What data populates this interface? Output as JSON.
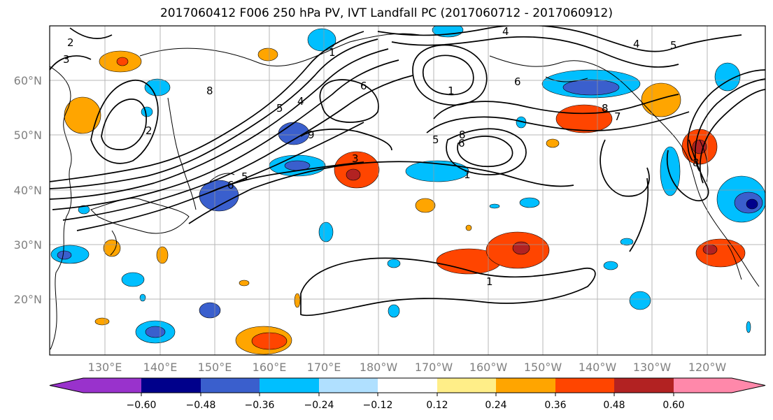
{
  "title": "2017060412 F006 250 hPa PV, IVT Landfall PC (2017060712 - 2017060912)",
  "map": {
    "lat_labels": [
      "60°N",
      "50°N",
      "40°N",
      "30°N",
      "20°N"
    ],
    "lon_labels": [
      "130°E",
      "140°E",
      "150°E",
      "160°E",
      "170°E",
      "180°W",
      "170°W",
      "160°W",
      "150°W",
      "140°W",
      "130°W",
      "120°W"
    ],
    "contour_labels": [
      "2",
      "3",
      "4",
      "4",
      "5",
      "6",
      "1",
      "8",
      "7",
      "6",
      "8",
      "5",
      "1",
      "6",
      "5",
      "9",
      "8",
      "5",
      "4",
      "2",
      "6",
      "1",
      "8",
      "3",
      "1"
    ]
  },
  "colorbar": {
    "tick_labels": [
      "−0.60",
      "−0.48",
      "−0.36",
      "−0.24",
      "−0.12",
      "0.12",
      "0.24",
      "0.36",
      "0.48",
      "0.60"
    ],
    "colors": [
      "#9932cc",
      "#00008b",
      "#3a5fcd",
      "#00bfff",
      "#b0e0ff",
      "#ffffff",
      "#ffee88",
      "#ffa500",
      "#ff4500",
      "#b22222",
      "#ff88aa"
    ]
  }
}
